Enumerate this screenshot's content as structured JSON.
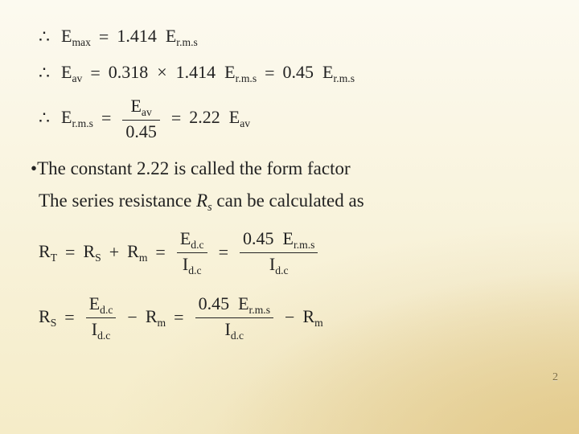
{
  "slide": {
    "background": {
      "top_color": "#fcfaf0",
      "bottom_color": "#f5ecc8",
      "corner_glow_color": "#e3c988"
    },
    "text_color": "#222222",
    "font_family": "Times New Roman",
    "body_fontsize_pt": 17,
    "math_fontsize_pt": 16,
    "page_number": "2",
    "equations": {
      "eq1": {
        "therefore": "∴",
        "lhs_base": "E",
        "lhs_sub": "max",
        "equals": "=",
        "coef": "1.414",
        "rhs_base": "E",
        "rhs_sub": "r.m.s"
      },
      "eq2": {
        "therefore": "∴",
        "lhs_base": "E",
        "lhs_sub": "av",
        "equals1": "=",
        "coef1": "0.318",
        "times": "×",
        "coef2": "1.414",
        "mid_base": "E",
        "mid_sub": "r.m.s",
        "equals2": "=",
        "coef3": "0.45",
        "rhs_base": "E",
        "rhs_sub": "r.m.s"
      },
      "eq3": {
        "therefore": "∴",
        "lhs_base": "E",
        "lhs_sub": "r.m.s",
        "equals1": "=",
        "frac1_num_base": "E",
        "frac1_num_sub": "av",
        "frac1_den": "0.45",
        "equals2": "=",
        "coef": "2.22",
        "rhs_base": "E",
        "rhs_sub": "av"
      },
      "eq4": {
        "lhs_base": "R",
        "lhs_sub": "T",
        "equals1": "=",
        "t1_base": "R",
        "t1_sub": "S",
        "plus": "+",
        "t2_base": "R",
        "t2_sub": "m",
        "equals2": "=",
        "frac1_num_base": "E",
        "frac1_num_sub": "d.c",
        "frac1_den_base": "I",
        "frac1_den_sub": "d.c",
        "equals3": "=",
        "frac2_num_coef": "0.45",
        "frac2_num_base": "E",
        "frac2_num_sub": "r.m.s",
        "frac2_den_base": "I",
        "frac2_den_sub": "d.c"
      },
      "eq5": {
        "lhs_base": "R",
        "lhs_sub": "S",
        "equals1": "=",
        "frac1_num_base": "E",
        "frac1_num_sub": "d.c",
        "frac1_den_base": "I",
        "frac1_den_sub": "d.c",
        "minus1": "−",
        "t1_base": "R",
        "t1_sub": "m",
        "equals2": "=",
        "frac2_num_coef": "0.45",
        "frac2_num_base": "E",
        "frac2_num_sub": "r.m.s",
        "frac2_den_base": "I",
        "frac2_den_sub": "d.c",
        "minus2": "−",
        "t2_base": "R",
        "t2_sub": "m"
      }
    },
    "bullet": {
      "marker": "•",
      "text_before": "The constant ",
      "constant": "2.22",
      "text_after": " is called the form  factor"
    },
    "body_line": {
      "text_before": "The series resistance ",
      "var_base": "R",
      "var_sub": "s",
      "text_after": " can be calculated as"
    }
  }
}
